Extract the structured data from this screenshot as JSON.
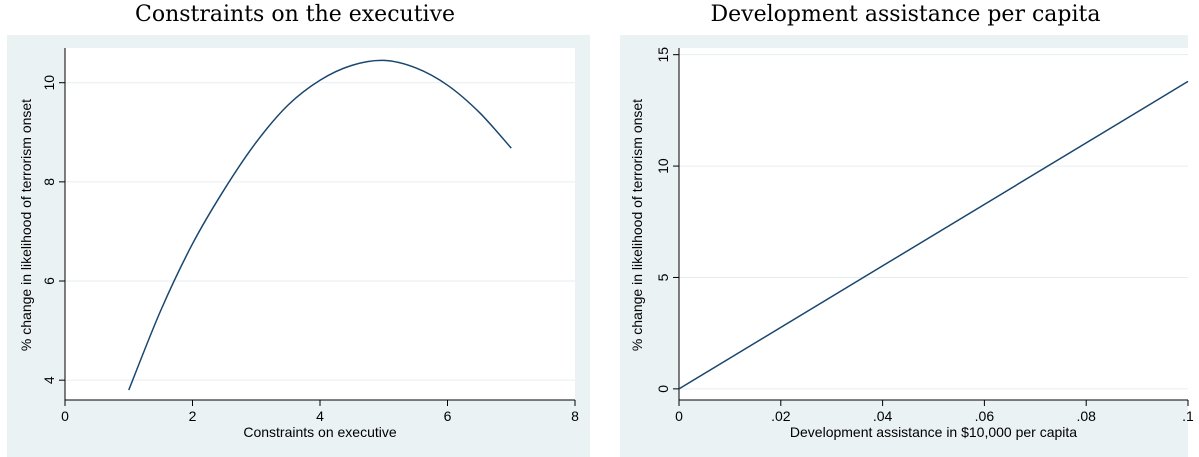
{
  "chart_data": [
    {
      "type": "line",
      "title": "Constraints on the executive",
      "xlabel": "Constraints on executive",
      "ylabel": "% change in likelihood of terrorism onset",
      "xlim": [
        0,
        8
      ],
      "ylim": [
        3.6,
        10.7
      ],
      "x_ticks": [
        0,
        2,
        4,
        6,
        8
      ],
      "x_tick_labels": [
        "0",
        "2",
        "4",
        "6",
        "8"
      ],
      "y_ticks": [
        4,
        6,
        8,
        10
      ],
      "y_tick_labels": [
        "4",
        "6",
        "8",
        "10"
      ],
      "grid": true,
      "line_color": "#1a476f",
      "series": [
        {
          "x": [
            1,
            1.5,
            2,
            2.5,
            3,
            3.5,
            4,
            4.5,
            5,
            5.5,
            6,
            6.5,
            7
          ],
          "y": [
            3.8,
            5.4,
            6.75,
            7.85,
            8.8,
            9.55,
            10.05,
            10.35,
            10.45,
            10.3,
            9.95,
            9.4,
            8.68
          ]
        }
      ]
    },
    {
      "type": "line",
      "title": "Development assistance per capita",
      "xlabel": "Development assistance in $10,000 per capita",
      "ylabel": "% change in likelihood of terrorism onset",
      "xlim": [
        0,
        0.1
      ],
      "ylim": [
        -0.5,
        15.3
      ],
      "x_ticks": [
        0,
        0.02,
        0.04,
        0.06,
        0.08,
        0.1
      ],
      "x_tick_labels": [
        "0",
        ".02",
        ".04",
        ".06",
        ".08",
        ".1"
      ],
      "y_ticks": [
        0,
        5,
        10,
        15
      ],
      "y_tick_labels": [
        "0",
        "5",
        "10",
        "15"
      ],
      "grid": true,
      "line_color": "#1a476f",
      "series": [
        {
          "x": [
            0,
            0.1
          ],
          "y": [
            0,
            13.8
          ]
        }
      ]
    }
  ]
}
